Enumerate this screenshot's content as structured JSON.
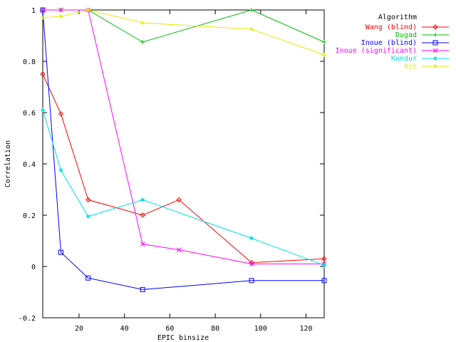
{
  "chart_data": {
    "type": "line",
    "title": "",
    "xlabel": "EPIC binsize",
    "ylabel": "Correlation",
    "xlim": [
      4,
      128
    ],
    "ylim": [
      -0.2,
      1.0
    ],
    "xticks": [
      20,
      40,
      60,
      80,
      100,
      120
    ],
    "yticks": [
      -0.2,
      0,
      0.2,
      0.4,
      0.6,
      0.8,
      1
    ],
    "ytick_labels": [
      "-0.2",
      "0",
      "0.2",
      "0.4",
      "0.6",
      "0.8",
      "1"
    ],
    "grid": false,
    "legend_title": "Algorithm",
    "legend_position": "outside-right-top",
    "series": [
      {
        "name": "Wang (blind)",
        "color": "#ff0000",
        "marker": "diamond",
        "points": [
          [
            4,
            0.75
          ],
          [
            12,
            0.595
          ],
          [
            24,
            0.26
          ],
          [
            48,
            0.2
          ],
          [
            64,
            0.26
          ],
          [
            96,
            0.015
          ],
          [
            128,
            0.03
          ]
        ]
      },
      {
        "name": "Dugad",
        "color": "#00c000",
        "marker": "plus",
        "points": [
          [
            4,
            1.0
          ],
          [
            12,
            1.0
          ],
          [
            24,
            1.0
          ],
          [
            48,
            0.875
          ],
          [
            96,
            1.0
          ],
          [
            128,
            0.875
          ]
        ]
      },
      {
        "name": "Inoue (blind)",
        "color": "#0000ff",
        "marker": "square",
        "points": [
          [
            4,
            1.0
          ],
          [
            12,
            0.055
          ],
          [
            24,
            -0.045
          ],
          [
            48,
            -0.09
          ],
          [
            96,
            -0.055
          ],
          [
            128,
            -0.055
          ]
        ]
      },
      {
        "name": "Inoue (significant)",
        "color": "#ff00ff",
        "marker": "x",
        "points": [
          [
            4,
            1.0
          ],
          [
            12,
            1.0
          ],
          [
            24,
            1.0
          ],
          [
            48,
            0.087
          ],
          [
            64,
            0.065
          ],
          [
            96,
            0.01
          ],
          [
            128,
            0.01
          ]
        ]
      },
      {
        "name": "Kundur",
        "color": "#00e0e0",
        "marker": "asterisk",
        "points": [
          [
            4,
            0.61
          ],
          [
            12,
            0.375
          ],
          [
            24,
            0.195
          ],
          [
            48,
            0.26
          ],
          [
            96,
            0.11
          ],
          [
            128,
            0.005
          ]
        ]
      },
      {
        "name": "Xie",
        "color": "#e8e800",
        "marker": "star",
        "points": [
          [
            4,
            0.97
          ],
          [
            12,
            0.975
          ],
          [
            24,
            1.0
          ],
          [
            48,
            0.95
          ],
          [
            96,
            0.925
          ],
          [
            128,
            0.825
          ]
        ]
      }
    ]
  }
}
